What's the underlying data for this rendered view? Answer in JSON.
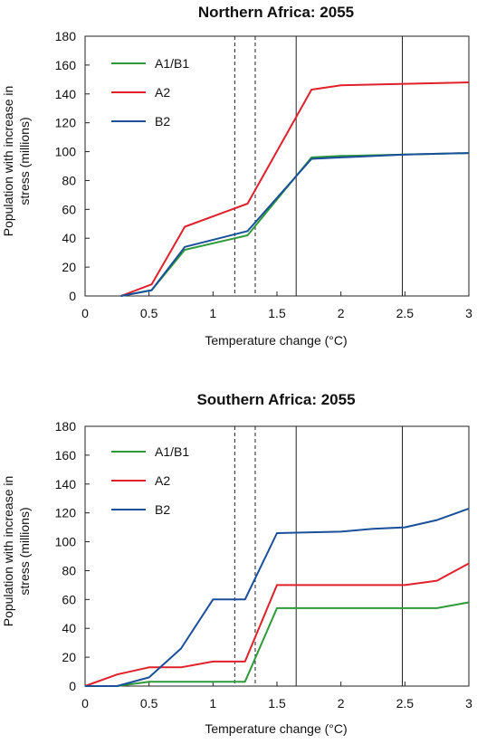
{
  "chart_data": [
    {
      "type": "line",
      "title": "Northern Africa: 2055",
      "xlabel": "Temperature change (°C)",
      "ylabel": "Population with increase in stress (millions)",
      "xlim": [
        0,
        3
      ],
      "ylim": [
        0,
        180
      ],
      "xticks": [
        0,
        0.5,
        1,
        1.5,
        2,
        2.5,
        3
      ],
      "xtick_labels": [
        "0",
        "0.5",
        "1",
        "1.5",
        "2",
        "2.5",
        "3"
      ],
      "yticks": [
        0,
        20,
        40,
        60,
        80,
        100,
        120,
        140,
        160,
        180
      ],
      "ytick_labels": [
        "0",
        "20",
        "40",
        "60",
        "80",
        "100",
        "120",
        "140",
        "160",
        "180"
      ],
      "legend_position": "top-left",
      "dashed_vlines": [
        1.17,
        1.33
      ],
      "solid_vlines": [
        1.65,
        2.48
      ],
      "series": [
        {
          "name": "A1/B1",
          "color": "#2e9a3a",
          "x": [
            0.28,
            0.52,
            0.78,
            1.27,
            1.77,
            2.0,
            2.5,
            3.0
          ],
          "y": [
            0,
            4,
            32,
            42,
            96,
            97,
            98,
            99
          ]
        },
        {
          "name": "A2",
          "color": "#e0202a",
          "x": [
            0.28,
            0.52,
            0.78,
            1.27,
            1.77,
            2.0,
            2.5,
            3.0
          ],
          "y": [
            0,
            8,
            48,
            64,
            143,
            146,
            147,
            148
          ]
        },
        {
          "name": "B2",
          "color": "#1a4f9a",
          "x": [
            0.28,
            0.52,
            0.78,
            1.27,
            1.77,
            2.0,
            2.5,
            3.0
          ],
          "y": [
            0,
            4,
            34,
            45,
            95,
            96,
            98,
            99
          ]
        }
      ]
    },
    {
      "type": "line",
      "title": "Southern Africa: 2055",
      "xlabel": "Temperature change (°C)",
      "ylabel": "Population with increase in stress (millions)",
      "xlim": [
        0,
        3
      ],
      "ylim": [
        0,
        180
      ],
      "xticks": [
        0,
        0.5,
        1,
        1.5,
        2,
        2.5,
        3
      ],
      "xtick_labels": [
        "0",
        "0.5",
        "1",
        "1.5",
        "2",
        "2.5",
        "3"
      ],
      "yticks": [
        0,
        20,
        40,
        60,
        80,
        100,
        120,
        140,
        160,
        180
      ],
      "ytick_labels": [
        "0",
        "20",
        "40",
        "60",
        "80",
        "100",
        "120",
        "140",
        "160",
        "180"
      ],
      "legend_position": "top-left",
      "dashed_vlines": [
        1.17,
        1.33
      ],
      "solid_vlines": [
        1.65,
        2.48
      ],
      "series": [
        {
          "name": "A1/B1",
          "color": "#2e9a3a",
          "x": [
            0,
            0.25,
            0.5,
            0.75,
            1.0,
            1.25,
            1.5,
            2.0,
            2.5,
            2.75,
            3.0
          ],
          "y": [
            0,
            0,
            3,
            3,
            3,
            3,
            54,
            54,
            54,
            54,
            58
          ]
        },
        {
          "name": "A2",
          "color": "#e0202a",
          "x": [
            0,
            0.25,
            0.5,
            0.75,
            1.0,
            1.25,
            1.5,
            2.0,
            2.5,
            2.75,
            3.0
          ],
          "y": [
            0,
            8,
            13,
            13,
            17,
            17,
            70,
            70,
            70,
            73,
            85
          ]
        },
        {
          "name": "B2",
          "color": "#1a4f9a",
          "x": [
            0,
            0.25,
            0.5,
            0.75,
            1.0,
            1.25,
            1.5,
            2.0,
            2.25,
            2.5,
            2.75,
            3.0
          ],
          "y": [
            0,
            0,
            6,
            26,
            60,
            60,
            106,
            107,
            109,
            110,
            115,
            123
          ]
        }
      ]
    }
  ]
}
